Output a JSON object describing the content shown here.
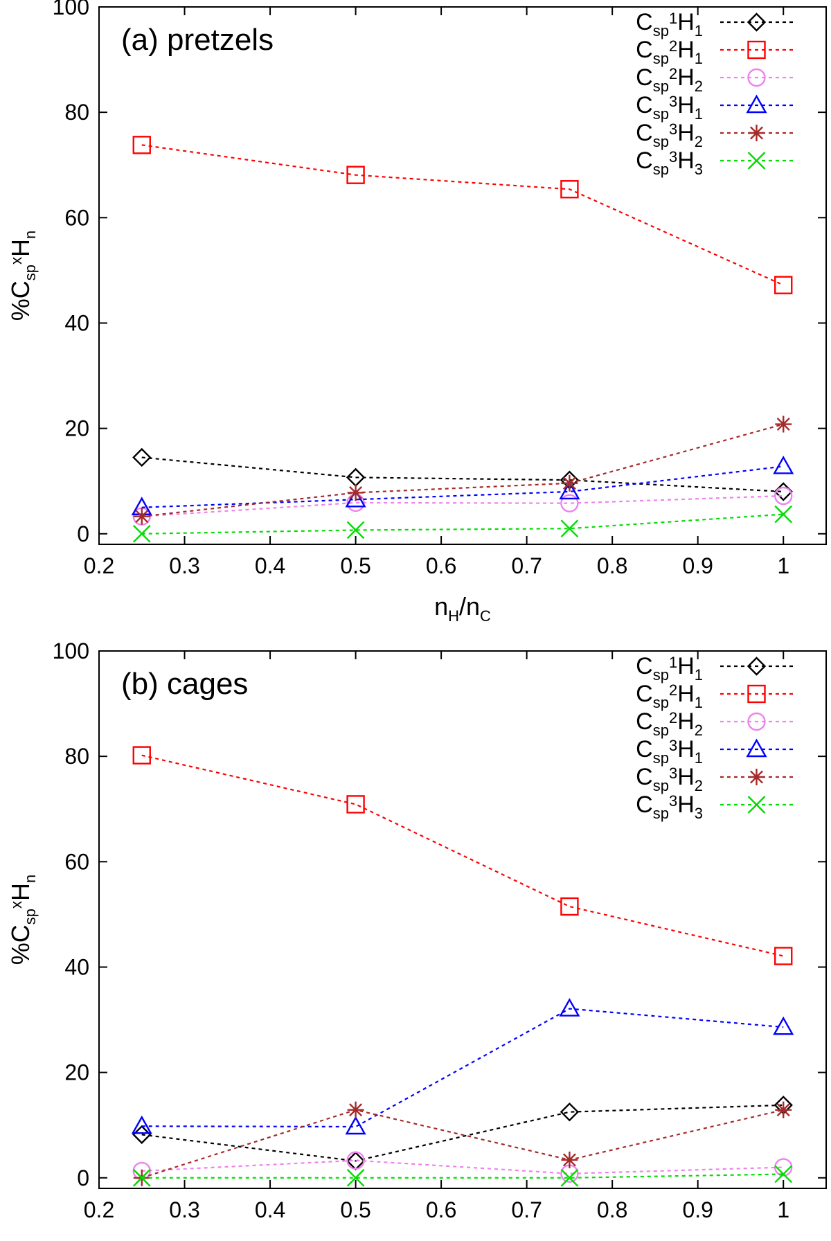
{
  "figure": {
    "ylabel": {
      "main": "%C",
      "sub1": "sp",
      "sup": "x",
      "main2": "H",
      "sub2": "n"
    },
    "xlabel": {
      "n1": "n",
      "s1": "H",
      "slash": "/n",
      "s2": "C"
    }
  },
  "chart_data": [
    {
      "type": "line",
      "title": "(a) pretzels",
      "xlim": [
        0.2,
        1.05
      ],
      "ylim": [
        -2,
        100
      ],
      "xticks": [
        "0.2",
        "0.3",
        "0.4",
        "0.5",
        "0.6",
        "0.7",
        "0.8",
        "0.9",
        "1"
      ],
      "yticks": [
        "0",
        "20",
        "40",
        "60",
        "80",
        "100"
      ],
      "x": [
        0.25,
        0.5,
        0.75,
        1.0
      ],
      "series": [
        {
          "name": "Csp1H1",
          "label": {
            "a": "C",
            "b": "sp",
            "c": "1",
            "d": "H",
            "e": "1"
          },
          "color": "#000000",
          "marker": "diamond",
          "values": [
            14.5,
            10.7,
            10.2,
            8.0
          ]
        },
        {
          "name": "Csp2H1",
          "label": {
            "a": "C",
            "b": "sp",
            "c": "2",
            "d": "H",
            "e": "1"
          },
          "color": "#ff0000",
          "marker": "square",
          "values": [
            73.8,
            68.1,
            65.4,
            47.2
          ]
        },
        {
          "name": "Csp2H2",
          "label": {
            "a": "C",
            "b": "sp",
            "c": "2",
            "d": "H",
            "e": "2"
          },
          "color": "#ee82ee",
          "marker": "circle",
          "values": [
            3.3,
            5.9,
            5.8,
            7.2
          ]
        },
        {
          "name": "Csp3H1",
          "label": {
            "a": "C",
            "b": "sp",
            "c": "3",
            "d": "H",
            "e": "1"
          },
          "color": "#0000ff",
          "marker": "triangle",
          "values": [
            5.0,
            6.5,
            8.0,
            12.8
          ]
        },
        {
          "name": "Csp3H2",
          "label": {
            "a": "C",
            "b": "sp",
            "c": "3",
            "d": "H",
            "e": "2"
          },
          "color": "#a52a2a",
          "marker": "star",
          "values": [
            3.3,
            7.8,
            9.6,
            20.8
          ]
        },
        {
          "name": "Csp3H3",
          "label": {
            "a": "C",
            "b": "sp",
            "c": "3",
            "d": "H",
            "e": "3"
          },
          "color": "#00dd00",
          "marker": "cross",
          "values": [
            0.0,
            0.7,
            1.0,
            3.7
          ]
        }
      ]
    },
    {
      "type": "line",
      "title": "(b) cages",
      "xlim": [
        0.2,
        1.05
      ],
      "ylim": [
        -2,
        100
      ],
      "xticks": [
        "0.2",
        "0.3",
        "0.4",
        "0.5",
        "0.6",
        "0.7",
        "0.8",
        "0.9",
        "1"
      ],
      "yticks": [
        "0",
        "20",
        "40",
        "60",
        "80",
        "100"
      ],
      "x": [
        0.25,
        0.5,
        0.75,
        1.0
      ],
      "series": [
        {
          "name": "Csp1H1",
          "label": {
            "a": "C",
            "b": "sp",
            "c": "1",
            "d": "H",
            "e": "1"
          },
          "color": "#000000",
          "marker": "diamond",
          "values": [
            8.2,
            3.2,
            12.5,
            13.8
          ]
        },
        {
          "name": "Csp2H1",
          "label": {
            "a": "C",
            "b": "sp",
            "c": "2",
            "d": "H",
            "e": "1"
          },
          "color": "#ff0000",
          "marker": "square",
          "values": [
            80.2,
            70.9,
            51.5,
            42.1
          ]
        },
        {
          "name": "Csp2H2",
          "label": {
            "a": "C",
            "b": "sp",
            "c": "2",
            "d": "H",
            "e": "2"
          },
          "color": "#ee82ee",
          "marker": "circle",
          "values": [
            1.3,
            3.3,
            0.8,
            2.0
          ]
        },
        {
          "name": "Csp3H1",
          "label": {
            "a": "C",
            "b": "sp",
            "c": "3",
            "d": "H",
            "e": "1"
          },
          "color": "#0000ff",
          "marker": "triangle",
          "values": [
            9.8,
            9.7,
            32.1,
            28.6
          ]
        },
        {
          "name": "Csp3H2",
          "label": {
            "a": "C",
            "b": "sp",
            "c": "3",
            "d": "H",
            "e": "2"
          },
          "color": "#a52a2a",
          "marker": "star",
          "values": [
            0.0,
            12.9,
            3.4,
            12.9
          ]
        },
        {
          "name": "Csp3H3",
          "label": {
            "a": "C",
            "b": "sp",
            "c": "3",
            "d": "H",
            "e": "3"
          },
          "color": "#00dd00",
          "marker": "cross",
          "values": [
            0.0,
            0.0,
            0.0,
            0.7
          ]
        }
      ]
    }
  ]
}
